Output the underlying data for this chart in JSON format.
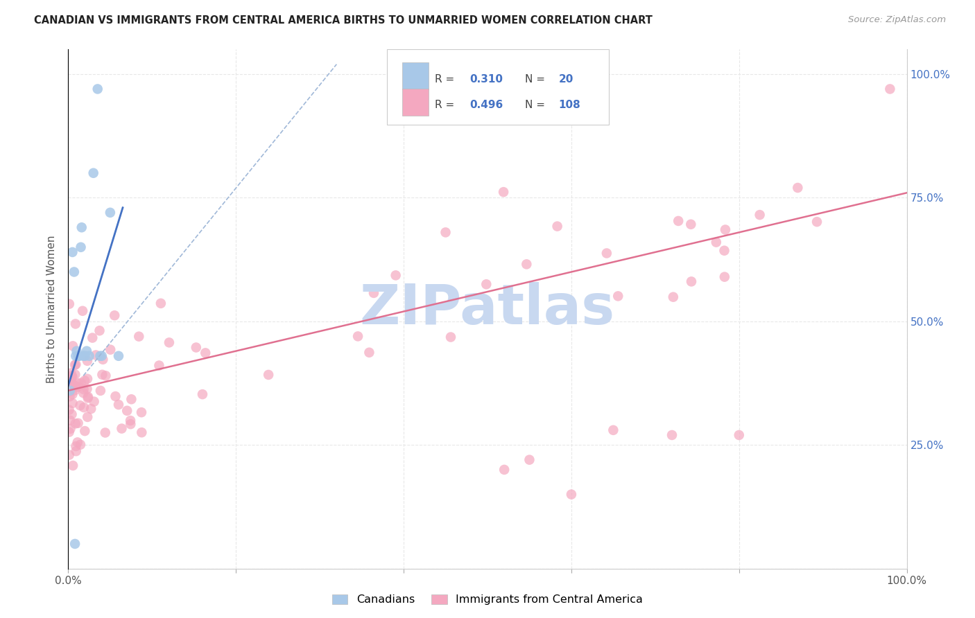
{
  "title": "CANADIAN VS IMMIGRANTS FROM CENTRAL AMERICA BIRTHS TO UNMARRIED WOMEN CORRELATION CHART",
  "source": "Source: ZipAtlas.com",
  "ylabel": "Births to Unmarried Women",
  "R_canadian": 0.31,
  "N_canadian": 20,
  "R_immigrant": 0.496,
  "N_immigrant": 108,
  "canadian_color": "#a8c8e8",
  "immigrant_color": "#f4a8c0",
  "canadian_line_color": "#4472c4",
  "immigrant_line_color": "#e07090",
  "dashed_color": "#a0b8d8",
  "watermark_text": "ZIPatlas",
  "watermark_color": "#c8d8f0",
  "right_tick_color": "#4472c4",
  "background_color": "#ffffff",
  "grid_color": "#e8e8e8",
  "title_color": "#222222",
  "source_color": "#999999",
  "legend_R_N_color": "#4472c4",
  "legend_label_color": "#444444"
}
